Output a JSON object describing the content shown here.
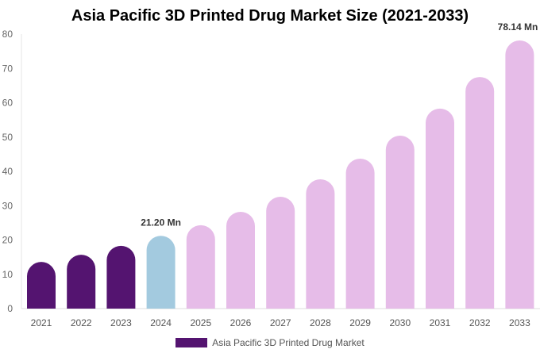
{
  "chart_data": {
    "type": "bar",
    "title": "Asia Pacific 3D Printed Drug Market Size (2021-2033)",
    "categories": [
      "2021",
      "2022",
      "2023",
      "2024",
      "2025",
      "2026",
      "2027",
      "2028",
      "2029",
      "2030",
      "2031",
      "2032",
      "2033"
    ],
    "series": [
      {
        "name": "Asia Pacific 3D Printed Drug Market",
        "values": [
          13.6,
          15.7,
          18.3,
          21.2,
          24.3,
          28.2,
          32.6,
          37.7,
          43.7,
          50.4,
          58.3,
          67.5,
          78.14
        ]
      }
    ],
    "ylim": [
      0,
      80
    ],
    "yticks": [
      0,
      10,
      20,
      30,
      40,
      50,
      60,
      70,
      80
    ],
    "data_labels": [
      {
        "index": 3,
        "text": "21.20 Mn"
      },
      {
        "index": 12,
        "text": "78.14 Mn"
      }
    ],
    "colors": {
      "historical": "#541470",
      "base_year": "#A3CADF",
      "forecast": "#E6BCE8"
    },
    "grid": false,
    "legend": "bottom"
  }
}
